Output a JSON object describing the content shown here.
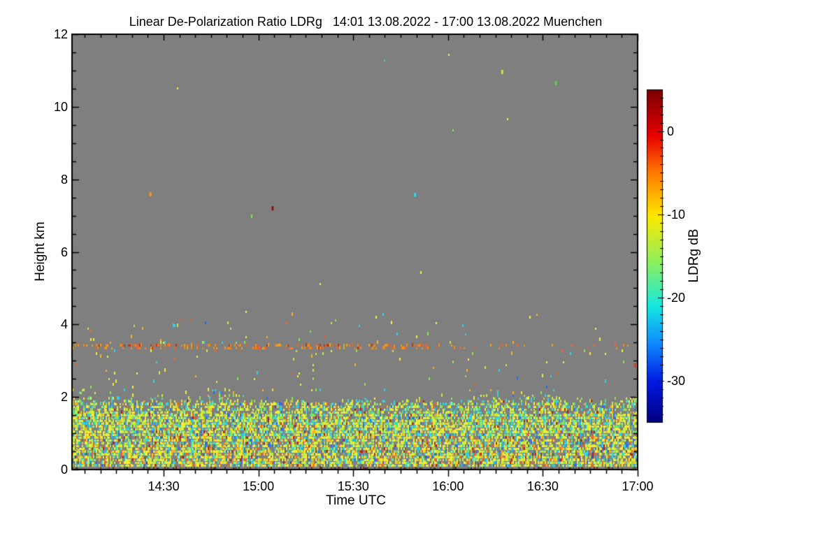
{
  "title": "Linear De-Polarization Ratio LDRg   14:01 13.08.2022 - 17:00 13.08.2022 Muenchen",
  "x_axis": {
    "label": "Time UTC",
    "ticks": [
      {
        "label": "14:30",
        "minutes": 870
      },
      {
        "label": "15:00",
        "minutes": 900
      },
      {
        "label": "15:30",
        "minutes": 930
      },
      {
        "label": "16:00",
        "minutes": 960
      },
      {
        "label": "16:30",
        "minutes": 990
      },
      {
        "label": "17:00",
        "minutes": 1020
      }
    ],
    "start_minutes": 841,
    "end_minutes": 1020,
    "minor_step_minutes": 5
  },
  "y_axis": {
    "label": "Height km",
    "ticks": [
      {
        "label": "0",
        "value": 0
      },
      {
        "label": "2",
        "value": 2
      },
      {
        "label": "4",
        "value": 4
      },
      {
        "label": "6",
        "value": 6
      },
      {
        "label": "8",
        "value": 8
      },
      {
        "label": "10",
        "value": 10
      },
      {
        "label": "12",
        "value": 12
      }
    ],
    "range": [
      0,
      12
    ],
    "minor_step": 0.5
  },
  "colorbar": {
    "label": "LDRg dB",
    "ticks": [
      {
        "label": "0",
        "value": 0
      },
      {
        "label": "-10",
        "value": -10
      },
      {
        "label": "-20",
        "value": -20
      },
      {
        "label": "-30",
        "value": -30
      }
    ],
    "value_range": [
      -35,
      5
    ],
    "minor_step_db": 1,
    "gradient": [
      {
        "f": 0.0,
        "c": "#7a0000"
      },
      {
        "f": 0.14,
        "c": "#e80000"
      },
      {
        "f": 0.25,
        "c": "#ff7a00"
      },
      {
        "f": 0.38,
        "c": "#ffe800"
      },
      {
        "f": 0.52,
        "c": "#8cf060"
      },
      {
        "f": 0.65,
        "c": "#15e8e0"
      },
      {
        "f": 0.76,
        "c": "#0f8cff"
      },
      {
        "f": 0.88,
        "c": "#0018e0"
      },
      {
        "f": 1.0,
        "c": "#000080"
      }
    ]
  },
  "layout_colors": {
    "background": "#ffffff",
    "plot_background": "#7f7f7f",
    "axis_color": "#000000",
    "text_color": "#000000"
  },
  "chart_data": {
    "type": "heatmap",
    "title": "Linear De-Polarization Ratio LDRg",
    "period_start": "14:01 13.08.2022",
    "period_end": "17:00 13.08.2022",
    "station": "Muenchen",
    "xlabel": "Time UTC",
    "ylabel": "Height km",
    "value_label": "LDRg dB",
    "value_range_db": [
      -35,
      5
    ],
    "xlim_minutes": [
      841,
      1020
    ],
    "ylim_km": [
      0,
      12
    ],
    "background_meaning": "gray = no signal / below threshold",
    "features": {
      "surface_strip": {
        "height_km": [
          0,
          0.05
        ],
        "coverage": 0.3,
        "palette": [
          [
            "#55553a",
            35
          ],
          [
            "#3a3a3a",
            20
          ],
          [
            "#8a2a10",
            15
          ],
          [
            "#6b6b2f",
            30
          ]
        ]
      },
      "boundary_layer_low": {
        "height_km": [
          0.05,
          0.9
        ],
        "coverage": 0.78,
        "palette": [
          [
            "#f0ee30",
            30
          ],
          [
            "#c9e93b",
            16
          ],
          [
            "#8fe34a",
            8
          ],
          [
            "#3fe0a8",
            5
          ],
          [
            "#2fd5e8",
            10
          ],
          [
            "#f9b019",
            11
          ],
          [
            "#f2622b",
            6
          ],
          [
            "#b81f10",
            3
          ],
          [
            "#2f6bf0",
            4
          ],
          [
            "#18b9f2",
            4
          ],
          [
            "#6a6a40",
            3
          ]
        ]
      },
      "boundary_layer_mid": {
        "height_km": [
          0.9,
          1.85
        ],
        "coverage_low": 0.78,
        "coverage_high": 0.55,
        "palette": [
          [
            "#f0ee30",
            26
          ],
          [
            "#c9e93b",
            22
          ],
          [
            "#8fe34a",
            12
          ],
          [
            "#3fe0a8",
            8
          ],
          [
            "#2fd5e8",
            14
          ],
          [
            "#f9b019",
            6
          ],
          [
            "#f2622b",
            3
          ],
          [
            "#b81f10",
            2
          ],
          [
            "#2f6bf0",
            4
          ],
          [
            "#18b9f2",
            3
          ]
        ]
      },
      "boundary_layer_top": {
        "height_km": [
          1.85,
          2.3
        ],
        "coverage_taper": [
          0.3,
          0.05
        ],
        "top_wave_km": {
          "base": 2.02,
          "amp1": 0.13,
          "amp2": 0.1,
          "amp3": 0.06
        },
        "palette": [
          [
            "#f0ee30",
            25
          ],
          [
            "#c9e93b",
            25
          ],
          [
            "#8fe34a",
            15
          ],
          [
            "#3fe0a8",
            10
          ],
          [
            "#2fd5e8",
            15
          ],
          [
            "#f9b019",
            5
          ],
          [
            "#2f6bf0",
            3
          ],
          [
            "#b81f10",
            2
          ]
        ]
      },
      "sparse_scatter": {
        "height_km": [
          2.3,
          4.35
        ],
        "coverage": 0.016,
        "coverage_fades_with_time": true,
        "palette": [
          [
            "#2fd5e8",
            22
          ],
          [
            "#f0ee30",
            24
          ],
          [
            "#8fe34a",
            14
          ],
          [
            "#c9e93b",
            10
          ],
          [
            "#f9b019",
            16
          ],
          [
            "#f2622b",
            9
          ],
          [
            "#2f6bf0",
            3
          ],
          [
            "#e8e23a",
            2
          ]
        ]
      },
      "aerosol_layer_line": {
        "height_km": [
          3.33,
          3.46
        ],
        "coverage_before": 0.3,
        "coverage_after": 0.06,
        "fade_time_frac": 0.63,
        "palette": [
          [
            "#f9840d",
            45
          ],
          [
            "#f2622b",
            25
          ],
          [
            "#e8a417",
            20
          ],
          [
            "#c33410",
            10
          ]
        ]
      },
      "high_altitude_noise": {
        "height_km": [
          4.35,
          12
        ],
        "coverage": 0.00012,
        "palette": [
          [
            "#f0ee30",
            40
          ],
          [
            "#8fe34a",
            30
          ],
          [
            "#2fd5e8",
            30
          ]
        ]
      },
      "isolated_points": [
        {
          "time_frac": 0.76,
          "height_km": 10.96,
          "color": "#cbe832"
        },
        {
          "time_frac": 0.855,
          "height_km": 10.65,
          "color": "#55d94e"
        },
        {
          "time_frac": 0.138,
          "height_km": 7.59,
          "color": "#f99a10"
        },
        {
          "time_frac": 0.354,
          "height_km": 7.2,
          "color": "#8a1508"
        },
        {
          "time_frac": 0.606,
          "height_km": 7.57,
          "color": "#2fd5ea"
        },
        {
          "time_frac": 0.995,
          "height_km": 2.87,
          "color": "#e83515"
        }
      ]
    }
  }
}
